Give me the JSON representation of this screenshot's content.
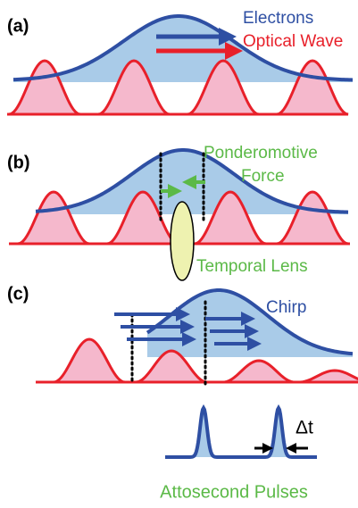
{
  "panels": [
    {
      "label": "(a)",
      "legend": [
        "Electrons",
        "Optical Wave"
      ]
    },
    {
      "label": "(b)",
      "annotations": [
        "Ponderomotive",
        "Force",
        "Temporal Lens"
      ]
    },
    {
      "label": "(c)",
      "annotations": [
        "Chirp"
      ]
    }
  ],
  "pulses": {
    "delta": "Δt",
    "caption": "Attosecond Pulses"
  }
}
